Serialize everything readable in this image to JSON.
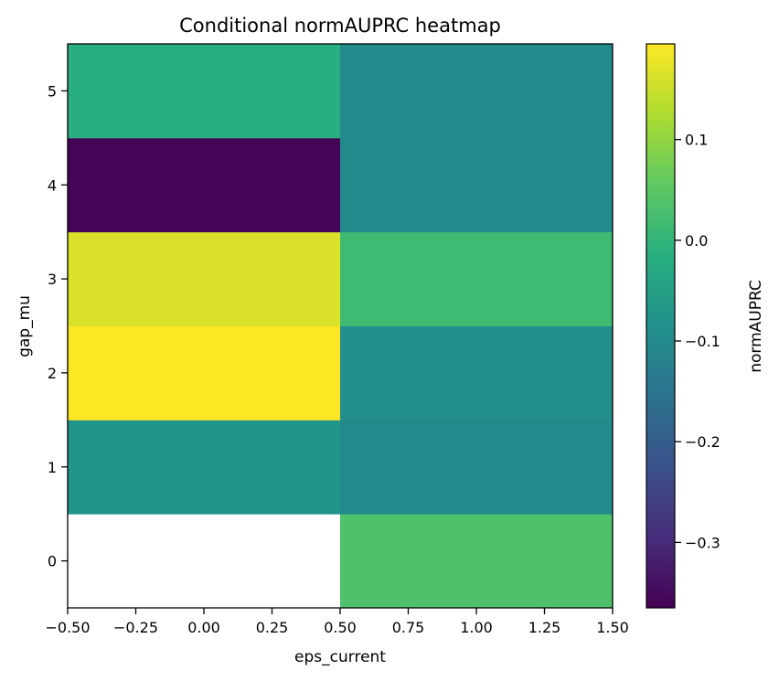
{
  "chart_data": {
    "type": "heatmap",
    "title": "Conditional normAUPRC heatmap",
    "xlabel": "eps_current",
    "ylabel": "gap_mu",
    "xlim": [
      -0.5,
      1.5
    ],
    "ylim": [
      -0.5,
      5.5
    ],
    "x_ticks": [
      -0.5,
      -0.25,
      0.0,
      0.25,
      0.5,
      0.75,
      1.0,
      1.25,
      1.5
    ],
    "x_tick_labels": [
      "−0.50",
      "−0.25",
      "0.00",
      "0.25",
      "0.50",
      "0.75",
      "1.00",
      "1.25",
      "1.50"
    ],
    "y_ticks": [
      0,
      1,
      2,
      3,
      4,
      5
    ],
    "y_tick_labels": [
      "0",
      "1",
      "2",
      "3",
      "4",
      "5"
    ],
    "x": [
      0,
      1
    ],
    "y": [
      0,
      1,
      2,
      3,
      4,
      5
    ],
    "values": [
      [
        null,
        0.035
      ],
      [
        -0.075,
        -0.1
      ],
      [
        0.195,
        -0.09
      ],
      [
        0.165,
        0.015
      ],
      [
        -0.36,
        -0.1
      ],
      [
        -0.015,
        -0.1
      ]
    ],
    "colormap": "viridis",
    "grid": false,
    "colorbar": {
      "label": "normAUPRC",
      "vmin": -0.365,
      "vmax": 0.195,
      "ticks": [
        0.1,
        0.0,
        -0.1,
        -0.2,
        -0.3
      ],
      "tick_labels": [
        "0.1",
        "0.0",
        "−0.1",
        "−0.2",
        "−0.3"
      ]
    }
  }
}
